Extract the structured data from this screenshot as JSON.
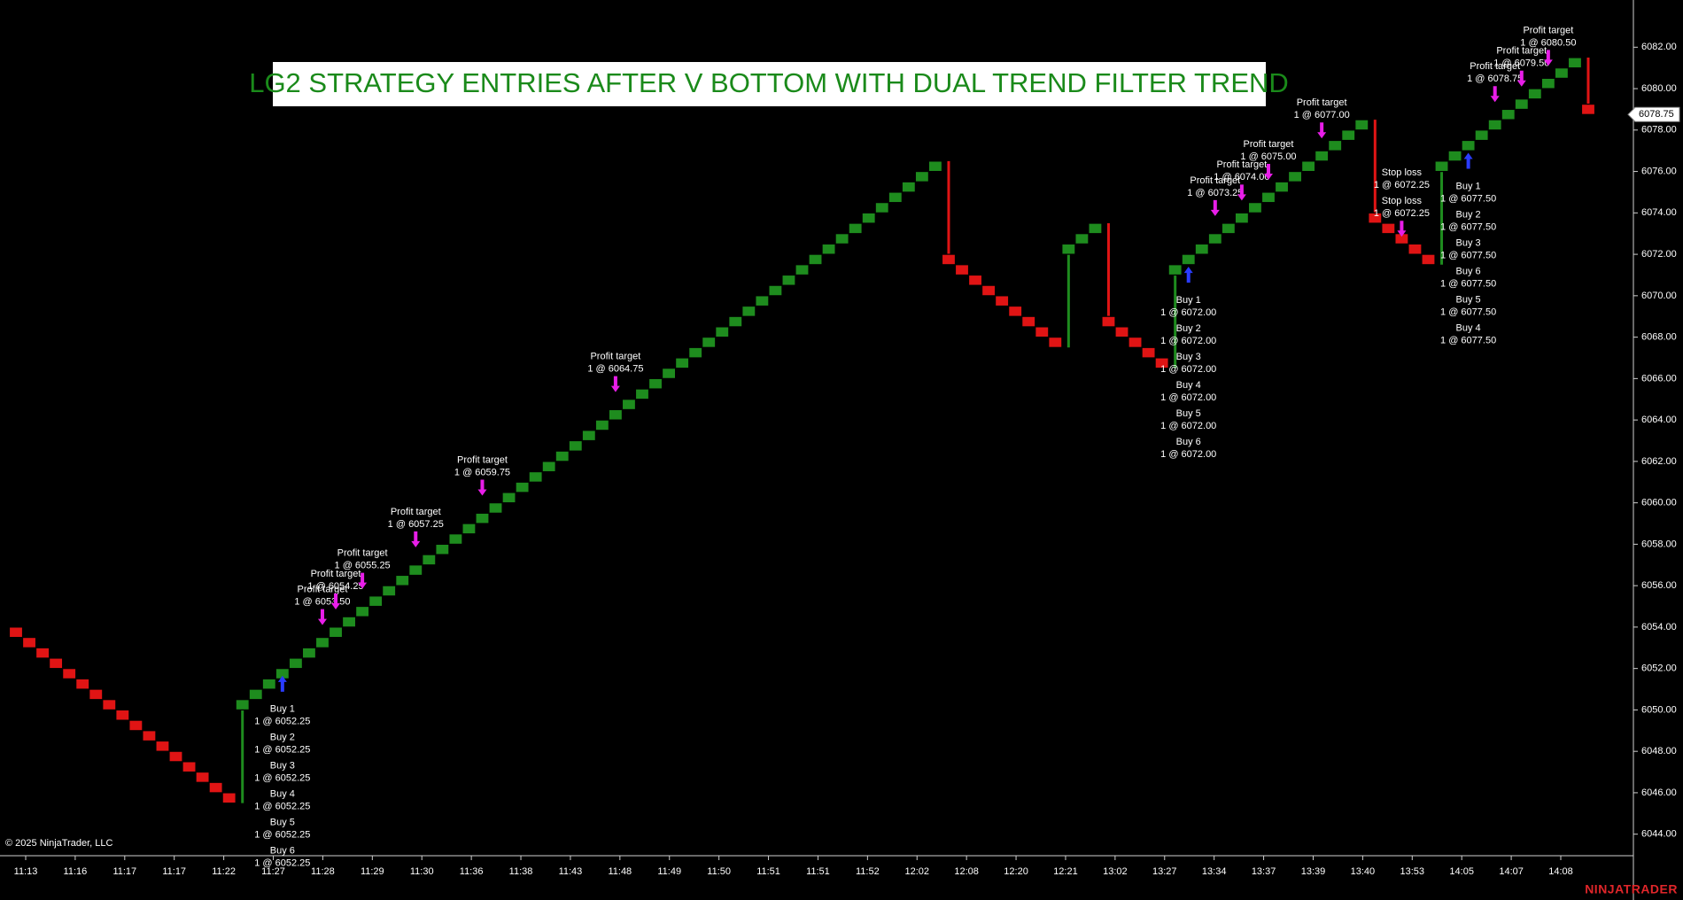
{
  "chart_data": {
    "type": "renko",
    "title": "LG2 STRATEGY ENTRIES AFTER V BOTTOM WITH DUAL TREND FILTER TREND",
    "copyright": "© 2025 NinjaTrader, LLC",
    "brand": "NINJATRADER",
    "x_labels": [
      "11:13",
      "11:16",
      "11:17",
      "11:17",
      "11:22",
      "11:27",
      "11:28",
      "11:29",
      "11:30",
      "11:36",
      "11:38",
      "11:43",
      "11:48",
      "11:49",
      "11:50",
      "11:51",
      "11:51",
      "11:52",
      "12:02",
      "12:08",
      "12:20",
      "12:21",
      "13:02",
      "13:27",
      "13:34",
      "13:37",
      "13:39",
      "13:40",
      "13:53",
      "14:05",
      "14:07",
      "14:08"
    ],
    "values": [
      6053.5,
      6053,
      6052.5,
      6052,
      6051.5,
      6051,
      6050.5,
      6050,
      6049.5,
      6049,
      6048.5,
      6048,
      6047.5,
      6047,
      6046.5,
      6046,
      6045.5,
      6050.5,
      6051,
      6051.5,
      6052,
      6052.5,
      6053,
      6053.5,
      6054,
      6054.5,
      6055,
      6055.5,
      6056,
      6056.5,
      6057,
      6057.5,
      6058,
      6058.5,
      6059,
      6059.5,
      6060,
      6060.5,
      6061,
      6061.5,
      6062,
      6062.5,
      6063,
      6063.5,
      6064,
      6064.5,
      6065,
      6065.5,
      6066,
      6066.5,
      6067,
      6067.5,
      6068,
      6068.5,
      6069,
      6069.5,
      6070,
      6070.5,
      6071,
      6071.5,
      6072,
      6072.5,
      6073,
      6073.5,
      6074,
      6074.5,
      6075,
      6075.5,
      6076,
      6076.5,
      6071.5,
      6071,
      6070.5,
      6070,
      6069.5,
      6069,
      6068.5,
      6068,
      6067.5,
      6072.5,
      6073,
      6073.5,
      6068.5,
      6068,
      6067.5,
      6067,
      6066.5,
      6071.5,
      6072,
      6072.5,
      6073,
      6073.5,
      6074,
      6074.5,
      6075,
      6075.5,
      6076,
      6076.5,
      6077,
      6077.5,
      6078,
      6078.5,
      6073.5,
      6073,
      6072.5,
      6072,
      6071.5,
      6076.5,
      6077,
      6077.5,
      6078,
      6078.5,
      6079,
      6079.5,
      6080,
      6080.5,
      6081,
      6081.5,
      6078.75
    ],
    "up_color": "#1e8c1e",
    "down_color": "#e01414",
    "ylim": [
      6042.96,
      6084.28
    ],
    "yticks": [
      {
        "value": 6044,
        "label": "6044.00"
      },
      {
        "value": 6046,
        "label": "6046.00"
      },
      {
        "value": 6048,
        "label": "6048.00"
      },
      {
        "value": 6050,
        "label": "6050.00"
      },
      {
        "value": 6052,
        "label": "6052.00"
      },
      {
        "value": 6054,
        "label": "6054.00"
      },
      {
        "value": 6056,
        "label": "6056.00"
      },
      {
        "value": 6058,
        "label": "6058.00"
      },
      {
        "value": 6060,
        "label": "6060.00"
      },
      {
        "value": 6062,
        "label": "6062.00"
      },
      {
        "value": 6064,
        "label": "6064.00"
      },
      {
        "value": 6066,
        "label": "6066.00"
      },
      {
        "value": 6068,
        "label": "6068.00"
      },
      {
        "value": 6070,
        "label": "6070.00"
      },
      {
        "value": 6072,
        "label": "6072.00"
      },
      {
        "value": 6074,
        "label": "6074.00"
      },
      {
        "value": 6076,
        "label": "6076.00"
      },
      {
        "value": 6078,
        "label": "6078.00"
      },
      {
        "value": 6080,
        "label": "6080.00"
      },
      {
        "value": 6082,
        "label": "6082.00"
      }
    ],
    "last_price": {
      "value": 6078.75,
      "label": "6078.75"
    },
    "entry_color": "#2a3cff",
    "exit_color": "#e81ee8",
    "executions": [
      {
        "direction": "up",
        "price": 6052.25,
        "labels": [
          {
            "name": "Buy 1",
            "detail": "1 @ 6052.25"
          },
          {
            "name": "Buy 2",
            "detail": "1 @ 6052.25"
          },
          {
            "name": "Buy 3",
            "detail": "1 @ 6052.25"
          },
          {
            "name": "Buy 4",
            "detail": "1 @ 6052.25"
          },
          {
            "name": "Buy 5",
            "detail": "1 @ 6052.25"
          },
          {
            "name": "Buy 6",
            "detail": "1 @ 6052.25"
          }
        ]
      },
      {
        "direction": "down",
        "price": 6053.5,
        "labels": [
          {
            "name": "Profit target",
            "detail": "1 @ 6053.50"
          }
        ]
      },
      {
        "direction": "down",
        "price": 6054.25,
        "labels": [
          {
            "name": "Profit target",
            "detail": "1 @ 6054.25"
          }
        ]
      },
      {
        "direction": "down",
        "price": 6055.25,
        "labels": [
          {
            "name": "Profit target",
            "detail": "1 @ 6055.25"
          }
        ]
      },
      {
        "direction": "down",
        "price": 6057.25,
        "labels": [
          {
            "name": "Profit target",
            "detail": "1 @ 6057.25"
          }
        ]
      },
      {
        "direction": "down",
        "price": 6059.75,
        "labels": [
          {
            "name": "Profit target",
            "detail": "1 @ 6059.75"
          }
        ]
      },
      {
        "direction": "down",
        "price": 6064.75,
        "labels": [
          {
            "name": "Profit target",
            "detail": "1 @ 6064.75"
          }
        ]
      },
      {
        "direction": "up",
        "price": 6072,
        "labels": [
          {
            "name": "Buy 1",
            "detail": "1 @ 6072.00"
          },
          {
            "name": "Buy 2",
            "detail": "1 @ 6072.00"
          },
          {
            "name": "Buy 3",
            "detail": "1 @ 6072.00"
          },
          {
            "name": "Buy 4",
            "detail": "1 @ 6072.00"
          },
          {
            "name": "Buy 5",
            "detail": "1 @ 6072.00"
          },
          {
            "name": "Buy 6",
            "detail": "1 @ 6072.00"
          }
        ]
      },
      {
        "direction": "down",
        "price": 6073.25,
        "labels": [
          {
            "name": "Profit target",
            "detail": "1 @ 6073.25"
          }
        ]
      },
      {
        "direction": "down",
        "price": 6074,
        "labels": [
          {
            "name": "Profit target",
            "detail": "1 @ 6074.00"
          }
        ]
      },
      {
        "direction": "down",
        "price": 6075,
        "labels": [
          {
            "name": "Profit target",
            "detail": "1 @ 6075.00"
          }
        ]
      },
      {
        "direction": "down",
        "price": 6077,
        "labels": [
          {
            "name": "Profit target",
            "detail": "1 @ 6077.00"
          }
        ]
      },
      {
        "direction": "down",
        "price": 6072.25,
        "labels": [
          {
            "name": "Stop loss",
            "detail": "1 @ 6072.25"
          },
          {
            "name": "Stop loss",
            "detail": "1 @ 6072.25"
          }
        ]
      },
      {
        "direction": "up",
        "price": 6077.5,
        "labels": [
          {
            "name": "Buy 1",
            "detail": "1 @ 6077.50"
          },
          {
            "name": "Buy 2",
            "detail": "1 @ 6077.50"
          },
          {
            "name": "Buy 3",
            "detail": "1 @ 6077.50"
          },
          {
            "name": "Buy 6",
            "detail": "1 @ 6077.50"
          },
          {
            "name": "Buy 5",
            "detail": "1 @ 6077.50"
          },
          {
            "name": "Buy 4",
            "detail": "1 @ 6077.50"
          }
        ]
      },
      {
        "direction": "down",
        "price": 6078.75,
        "labels": [
          {
            "name": "Profit target",
            "detail": "1 @ 6078.75"
          }
        ]
      },
      {
        "direction": "down",
        "price": 6079.5,
        "labels": [
          {
            "name": "Profit target",
            "detail": "1 @ 6079.50"
          }
        ]
      },
      {
        "direction": "down",
        "price": 6080.5,
        "labels": [
          {
            "name": "Profit target",
            "detail": "1 @ 6080.50"
          }
        ]
      }
    ]
  }
}
